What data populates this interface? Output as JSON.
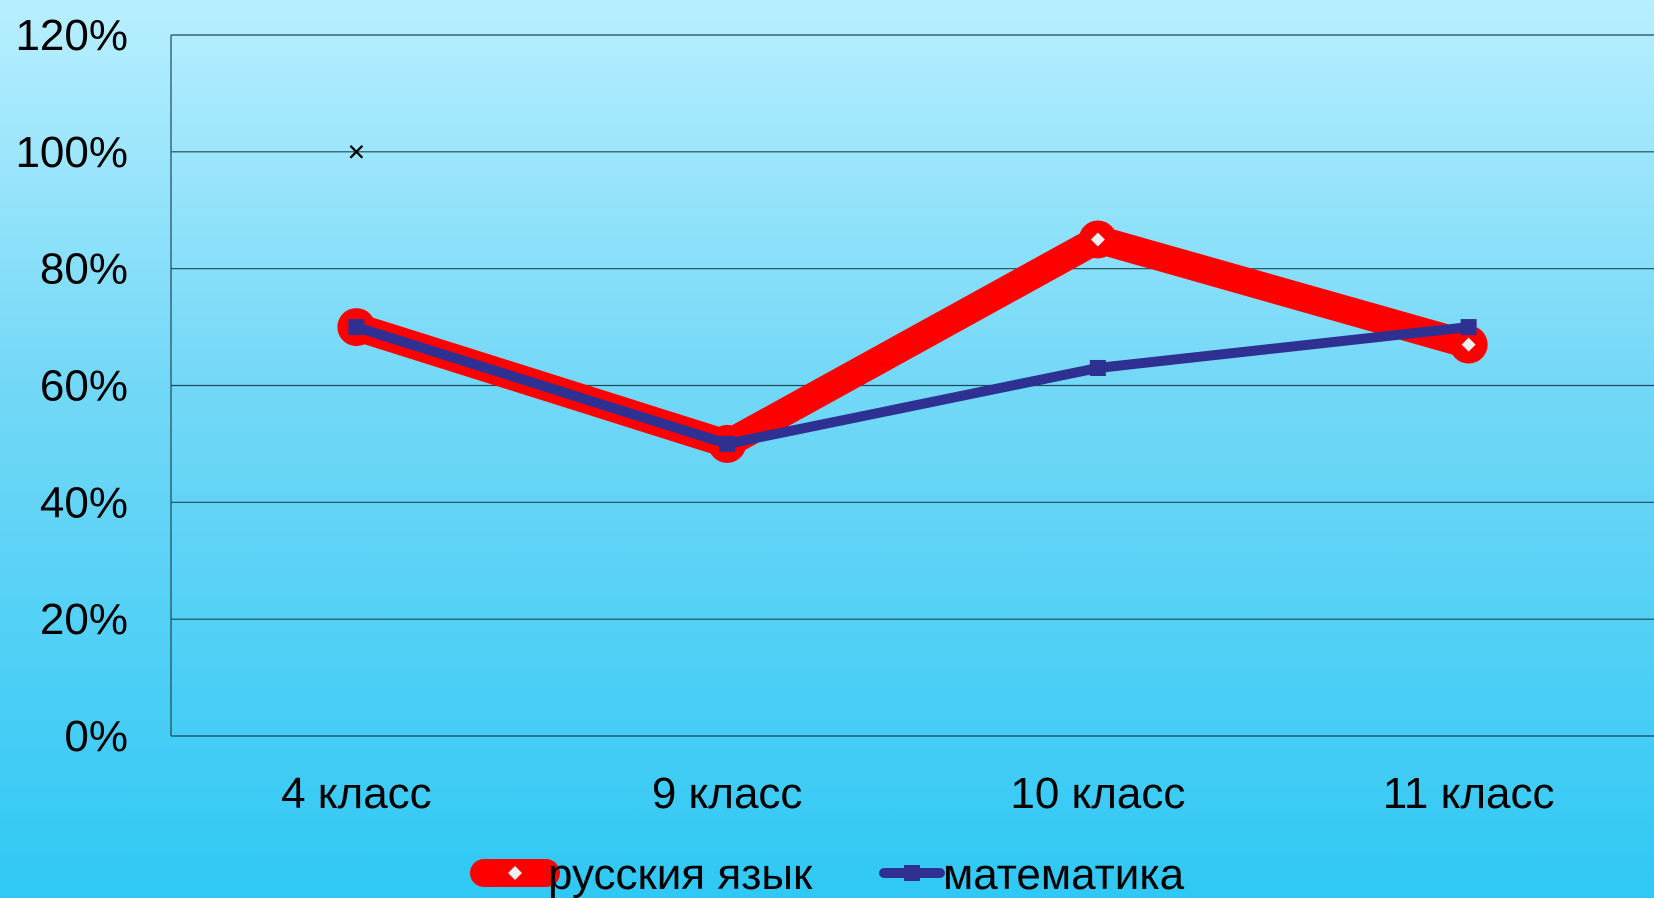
{
  "chart_data": {
    "type": "line",
    "categories": [
      "4 класс",
      "9 класс",
      "10 класс",
      "11 класс"
    ],
    "y_tick_labels": [
      "0%",
      "20%",
      "40%",
      "60%",
      "80%",
      "100%",
      "120%"
    ],
    "ylim": [
      0,
      120
    ],
    "grid": true,
    "legend_position": "bottom",
    "series": [
      {
        "name": "русския язык",
        "values": [
          70,
          50,
          85,
          67
        ],
        "color": "#ff0000",
        "marker": "diamond"
      },
      {
        "name": "математика",
        "values": [
          70,
          50,
          63,
          70
        ],
        "color": "#2e3192",
        "marker": "square"
      },
      {
        "name": "",
        "values": [
          100,
          null,
          null,
          null
        ],
        "color": "#000000",
        "marker": "x"
      }
    ]
  }
}
